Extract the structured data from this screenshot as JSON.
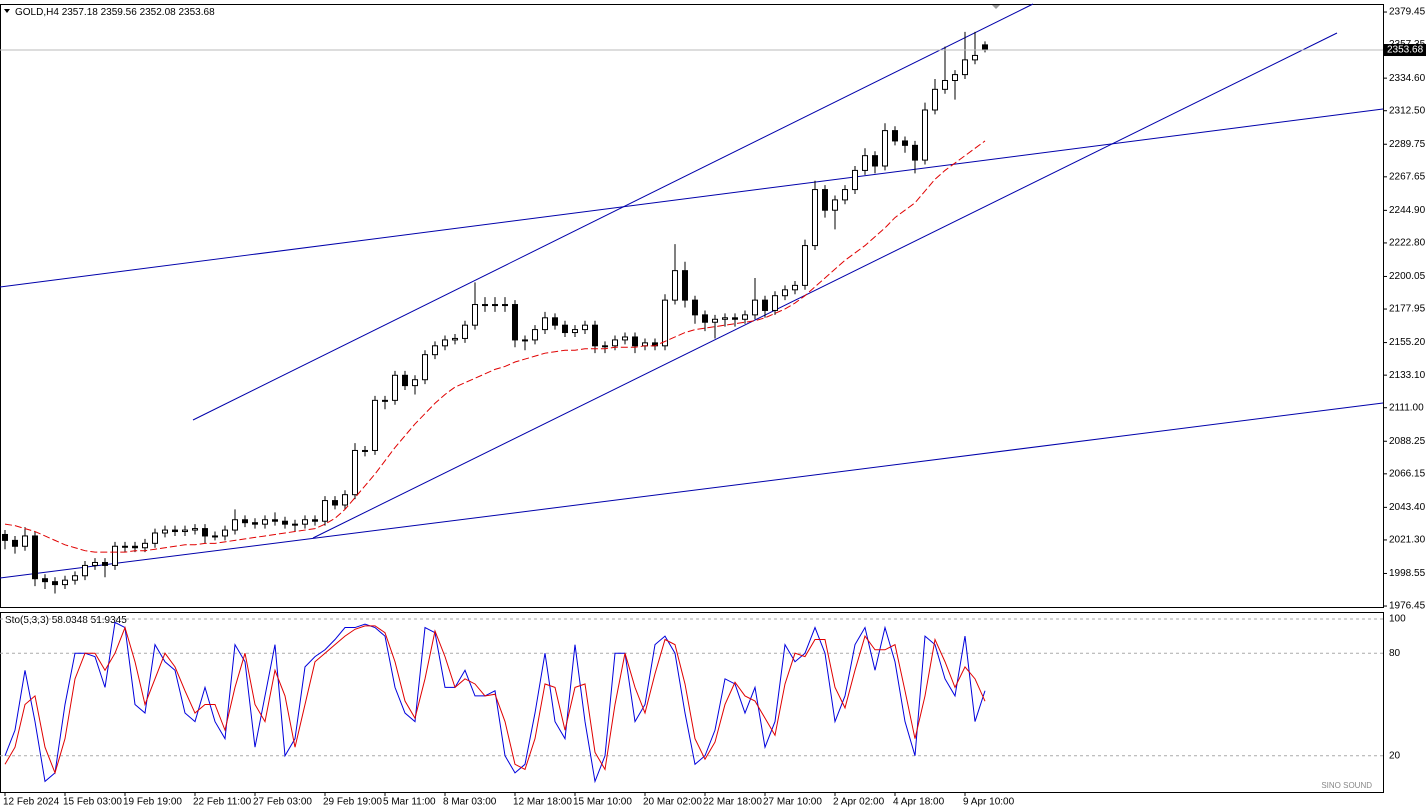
{
  "chart_data": [
    {
      "type": "candlestick",
      "symbol": "GOLD,H4",
      "categories": [
        "12 Feb 2024",
        null,
        null,
        null,
        null,
        null,
        "15 Feb 03:00",
        null,
        null,
        null,
        null,
        null,
        "19 Feb 19:00",
        null,
        null,
        null,
        null,
        null,
        null,
        "22 Feb 11:00",
        null,
        null,
        null,
        null,
        null,
        "27 Feb 03:00",
        null,
        null,
        null,
        null,
        null,
        null,
        "29 Feb 19:00",
        null,
        null,
        null,
        null,
        null,
        "5 Mar 11:00",
        null,
        null,
        null,
        null,
        null,
        "8 Mar 03:00",
        null,
        null,
        null,
        null,
        null,
        null,
        "12 Mar 18:00",
        null,
        null,
        null,
        null,
        null,
        "15 Mar 10:00",
        null,
        null,
        null,
        null,
        null,
        null,
        "20 Mar 02:00",
        null,
        null,
        null,
        null,
        null,
        "22 Mar 18:00",
        null,
        null,
        null,
        null,
        null,
        "27 Mar 10:00",
        null,
        null,
        null,
        null,
        null,
        null,
        "2 Apr 02:00",
        null,
        null,
        null,
        null,
        null,
        "4 Apr 18:00",
        null,
        null,
        null,
        null,
        null,
        null,
        "9 Apr 10:00",
        null,
        null
      ],
      "open": [
        2025,
        2021,
        2017,
        2024,
        1995,
        1993,
        1991,
        1994,
        1997,
        2004,
        2006,
        2004,
        2017,
        2017,
        2016,
        2019,
        2026,
        2028,
        2027,
        2028,
        2029,
        2024,
        2024,
        2028,
        2035,
        2033,
        2032,
        2035,
        2034,
        2032,
        2032,
        2035,
        2034,
        2048,
        2045,
        2052,
        2082,
        2082,
        2116,
        2116,
        2133,
        2126,
        2130,
        2147,
        2153,
        2157,
        2158,
        2167,
        2181,
        2181,
        2181,
        2181,
        2157,
        2157,
        2164,
        2172,
        2167,
        2162,
        2164,
        2167,
        2153,
        2153,
        2157,
        2159,
        2153,
        2155,
        2153,
        2184,
        2204,
        2184,
        2174,
        2169,
        2171,
        2172,
        2171,
        2174,
        2184,
        2177,
        2187,
        2191,
        2194,
        2221,
        2259,
        2245,
        2252,
        2259,
        2272,
        2282,
        2275,
        2299,
        2292,
        2289,
        2279,
        2313,
        2327,
        2333,
        2337,
        2347,
        2357.18
      ],
      "high": [
        2028,
        2024,
        2030,
        2027,
        1998,
        1996,
        1997,
        2000,
        2007,
        2009,
        2009,
        2020,
        2020,
        2020,
        2022,
        2029,
        2031,
        2031,
        2031,
        2032,
        2032,
        2027,
        2031,
        2042,
        2038,
        2036,
        2038,
        2040,
        2037,
        2035,
        2038,
        2038,
        2051,
        2051,
        2055,
        2087,
        2085,
        2119,
        2119,
        2136,
        2136,
        2133,
        2150,
        2156,
        2160,
        2161,
        2170,
        2196,
        2186,
        2186,
        2186,
        2184,
        2160,
        2167,
        2176,
        2175,
        2170,
        2167,
        2170,
        2170,
        2156,
        2160,
        2162,
        2162,
        2158,
        2158,
        2188,
        2222,
        2210,
        2187,
        2177,
        2174,
        2175,
        2175,
        2177,
        2199,
        2187,
        2190,
        2194,
        2197,
        2225,
        2265,
        2262,
        2255,
        2262,
        2275,
        2287,
        2285,
        2304,
        2302,
        2295,
        2292,
        2318,
        2334,
        2356,
        2340,
        2366,
        2366,
        2359.56
      ],
      "low": [
        2015,
        2012,
        2014,
        1990,
        1988,
        1985,
        1988,
        1991,
        1994,
        2001,
        1996,
        2001,
        2013,
        2013,
        2013,
        2016,
        2023,
        2024,
        2024,
        2025,
        2019,
        2021,
        2021,
        2025,
        2030,
        2029,
        2029,
        2031,
        2029,
        2027,
        2029,
        2031,
        2031,
        2042,
        2042,
        2049,
        2078,
        2079,
        2110,
        2113,
        2123,
        2120,
        2127,
        2144,
        2150,
        2154,
        2155,
        2164,
        2176,
        2176,
        2176,
        2152,
        2150,
        2154,
        2161,
        2164,
        2159,
        2159,
        2161,
        2148,
        2148,
        2150,
        2154,
        2148,
        2150,
        2150,
        2150,
        2181,
        2179,
        2168,
        2163,
        2158,
        2166,
        2166,
        2168,
        2171,
        2172,
        2174,
        2184,
        2188,
        2191,
        2218,
        2240,
        2232,
        2249,
        2256,
        2269,
        2270,
        2272,
        2289,
        2284,
        2270,
        2276,
        2310,
        2324,
        2320,
        2334,
        2344,
        2352.08
      ],
      "close": [
        2021,
        2017,
        2024,
        1995,
        1993,
        1991,
        1994,
        1997,
        2004,
        2006,
        2004,
        2017,
        2017,
        2016,
        2019,
        2026,
        2028,
        2027,
        2028,
        2029,
        2024,
        2024,
        2028,
        2035,
        2033,
        2032,
        2035,
        2034,
        2032,
        2032,
        2035,
        2034,
        2048,
        2045,
        2052,
        2082,
        2082,
        2116,
        2116,
        2133,
        2126,
        2130,
        2147,
        2153,
        2157,
        2158,
        2167,
        2181,
        2181,
        2181,
        2181,
        2157,
        2157,
        2164,
        2172,
        2167,
        2162,
        2164,
        2167,
        2153,
        2153,
        2157,
        2159,
        2153,
        2155,
        2153,
        2184,
        2204,
        2184,
        2174,
        2169,
        2171,
        2172,
        2171,
        2174,
        2184,
        2177,
        2187,
        2191,
        2194,
        2221,
        2259,
        2245,
        2252,
        2259,
        2272,
        2282,
        2275,
        2299,
        2292,
        2289,
        2279,
        2313,
        2327,
        2333,
        2337,
        2347,
        2350,
        2353.68
      ],
      "ma": [
        2032,
        2031,
        2029,
        2027,
        2024,
        2021,
        2018,
        2016,
        2014,
        2013,
        2013,
        2013,
        2013,
        2014,
        2014,
        2015,
        2016,
        2017,
        2018,
        2018,
        2019,
        2019,
        2020,
        2021,
        2022,
        2023,
        2024,
        2025,
        2026,
        2027,
        2028,
        2029,
        2032,
        2036,
        2042,
        2050,
        2058,
        2066,
        2075,
        2084,
        2092,
        2100,
        2107,
        2114,
        2120,
        2125,
        2128,
        2131,
        2134,
        2137,
        2139,
        2142,
        2144,
        2146,
        2148,
        2149,
        2150,
        2150,
        2151,
        2151,
        2151,
        2152,
        2152,
        2152,
        2153,
        2153,
        2156,
        2159,
        2162,
        2164,
        2165,
        2166,
        2167,
        2168,
        2169,
        2170,
        2172,
        2175,
        2178,
        2182,
        2187,
        2193,
        2199,
        2205,
        2211,
        2216,
        2221,
        2227,
        2233,
        2240,
        2245,
        2250,
        2258,
        2266,
        2272,
        2277,
        2282,
        2287,
        2292
      ],
      "ma_color": "#e00000",
      "up_color": "#ffffff",
      "down_color": "#000000",
      "ylim": [
        1975.8,
        2384.9
      ],
      "yticks": [
        2379.45,
        2357.35,
        {
          "value": 2334.6,
          "label": "2334.60"
        },
        {
          "value": 2312.5,
          "label": "2312.50"
        },
        2289.75,
        2267.65,
        {
          "value": 2244.9,
          "label": "2244.90"
        },
        {
          "value": 2222.8,
          "label": "2222.80"
        },
        2200.05,
        2177.95,
        {
          "value": 2155.2,
          "label": "2155.20"
        },
        {
          "value": 2133.1,
          "label": "2133.10"
        },
        {
          "value": 2111,
          "label": "2111.00"
        },
        2088.25,
        2066.15,
        {
          "value": 2043.4,
          "label": "2043.40"
        },
        {
          "value": 2021.3,
          "label": "2021.30"
        },
        1998.55,
        1976.45
      ]
    },
    {
      "type": "line",
      "title": "Sto(5,3,3)",
      "series": [
        {
          "color": "#0000dd",
          "values": [
            20,
            35,
            70,
            40,
            5,
            10,
            50,
            80,
            80,
            78,
            60,
            98,
            95,
            50,
            45,
            85,
            75,
            70,
            45,
            40,
            60,
            40,
            30,
            85,
            75,
            25,
            55,
            85,
            20,
            30,
            72,
            78,
            82,
            88,
            95,
            95,
            97,
            95,
            90,
            60,
            45,
            40,
            95,
            92,
            60,
            60,
            70,
            55,
            55,
            58,
            20,
            10,
            15,
            45,
            80,
            40,
            30,
            85,
            40,
            5,
            20,
            80,
            80,
            40,
            50,
            85,
            90,
            80,
            45,
            15,
            20,
            35,
            65,
            62,
            45,
            60,
            25,
            40,
            85,
            75,
            80,
            95,
            80,
            40,
            55,
            85,
            95,
            70,
            95,
            75,
            40,
            20,
            90,
            85,
            65,
            55,
            90,
            40,
            58.0348
          ]
        },
        {
          "color": "#e00000",
          "values": [
            15,
            25,
            50,
            55,
            25,
            10,
            30,
            65,
            80,
            80,
            70,
            80,
            95,
            75,
            50,
            65,
            80,
            72,
            58,
            45,
            50,
            50,
            35,
            60,
            80,
            50,
            40,
            70,
            55,
            25,
            50,
            75,
            80,
            85,
            90,
            94,
            96,
            96,
            92,
            75,
            52,
            42,
            65,
            93,
            78,
            60,
            65,
            62,
            55,
            56,
            40,
            15,
            12,
            30,
            62,
            60,
            35,
            60,
            62,
            22,
            12,
            50,
            80,
            60,
            45,
            68,
            88,
            85,
            62,
            30,
            18,
            28,
            50,
            63,
            55,
            52,
            42,
            32,
            62,
            80,
            78,
            88,
            88,
            60,
            48,
            70,
            90,
            82,
            82,
            85,
            58,
            30,
            55,
            88,
            75,
            60,
            72,
            65,
            51.9345
          ]
        }
      ],
      "ylim": [
        -1.2,
        104.1
      ],
      "yticks": [
        20,
        80,
        100
      ],
      "grid": true
    }
  ],
  "watermark": "SINO SOUND"
}
